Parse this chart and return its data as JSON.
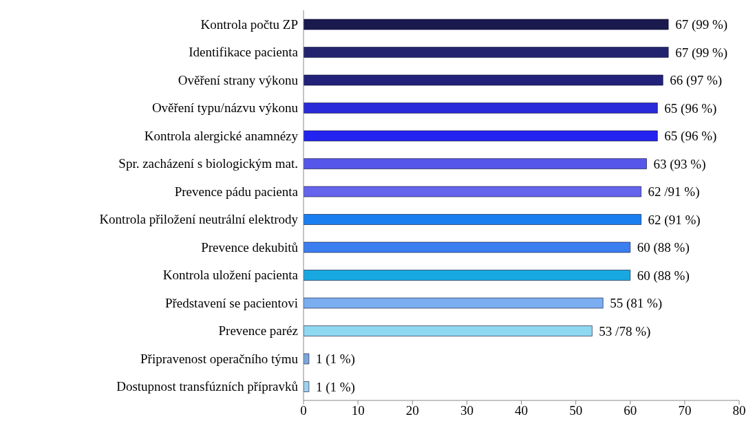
{
  "chart_data": {
    "type": "bar",
    "orientation": "horizontal",
    "categories": [
      "Kontrola počtu ZP",
      "Identifikace pacienta",
      "Ověření strany výkonu",
      "Ověření typu/názvu výkonu",
      "Kontrola alergické anamnézy",
      "Spr. zacházení s biologickým mat.",
      "Prevence pádu pacienta",
      "Kontrola přiložení neutrální elektrody",
      "Prevence dekubitů",
      "Kontrola uložení pacienta",
      "Představení se pacientovi",
      "Prevence paréz",
      "Připravenost operačního týmu",
      "Dostupnost transfúzních přípravků"
    ],
    "values": [
      67,
      67,
      66,
      65,
      65,
      63,
      62,
      62,
      60,
      60,
      55,
      53,
      1,
      1
    ],
    "value_labels": [
      "67 (99 %)",
      "67 (99 %)",
      "66 (97 %)",
      "65 (96 %)",
      "65 (96 %)",
      "63 (93 %)",
      "62 /91 %)",
      "62 (91 %)",
      "60 (88 %)",
      "60 (88 %)",
      "55 (81 %)",
      "53 /78 %)",
      "1 (1 %)",
      "1 (1 %)"
    ],
    "colors": [
      "#1a1a4e",
      "#24246e",
      "#22227a",
      "#2a2ad8",
      "#2424f0",
      "#5656e8",
      "#6464ec",
      "#1a7ef0",
      "#3a7ef0",
      "#18a8e0",
      "#7aaef0",
      "#8ed8f0",
      "#7aa8dc",
      "#a0d0ec"
    ],
    "xlim": [
      0,
      80
    ],
    "xticks": [
      0,
      10,
      20,
      30,
      40,
      50,
      60,
      70,
      80
    ],
    "grid": false,
    "legend": false
  }
}
